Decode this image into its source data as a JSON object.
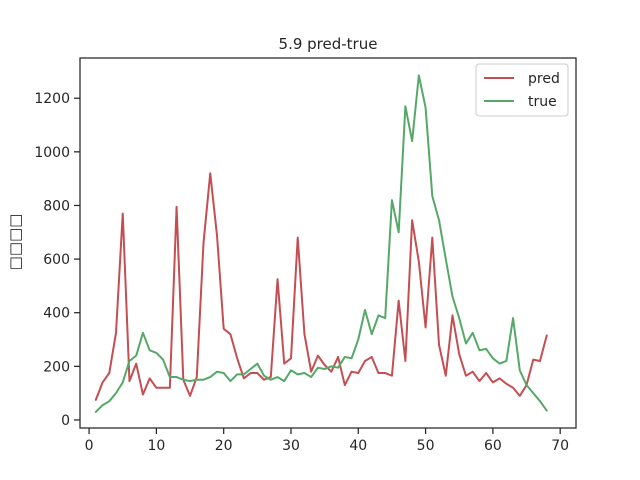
{
  "chart_data": {
    "type": "line",
    "title": "5.9 pred-true",
    "xlabel": "",
    "ylabel": "□□□□",
    "xlim": [
      -1.35,
      72.35
    ],
    "ylim": [
      -30,
      1350
    ],
    "xticks": [
      0,
      10,
      20,
      30,
      40,
      50,
      60,
      70
    ],
    "yticks": [
      0,
      200,
      400,
      600,
      800,
      1000,
      1200
    ],
    "grid": false,
    "legend_position": "top-right",
    "x": [
      1,
      2,
      3,
      4,
      5,
      6,
      7,
      8,
      9,
      10,
      11,
      12,
      13,
      14,
      15,
      16,
      17,
      18,
      19,
      20,
      21,
      22,
      23,
      24,
      25,
      26,
      27,
      28,
      29,
      30,
      31,
      32,
      33,
      34,
      35,
      36,
      37,
      38,
      39,
      40,
      41,
      42,
      43,
      44,
      45,
      46,
      47,
      48,
      49,
      50,
      51,
      52,
      53,
      54,
      55,
      56,
      57,
      58,
      59,
      60,
      61,
      62,
      63,
      64,
      65,
      66,
      67,
      68
    ],
    "series": [
      {
        "name": "pred",
        "color": "#c44e52",
        "values": [
          75,
          140,
          175,
          325,
          770,
          145,
          210,
          95,
          155,
          120,
          120,
          120,
          795,
          150,
          90,
          160,
          660,
          920,
          690,
          340,
          320,
          230,
          155,
          175,
          175,
          150,
          160,
          525,
          210,
          230,
          680,
          320,
          180,
          240,
          205,
          180,
          235,
          130,
          180,
          175,
          220,
          235,
          175,
          175,
          165,
          445,
          220,
          745,
          590,
          345,
          680,
          280,
          165,
          390,
          245,
          165,
          180,
          145,
          175,
          140,
          155,
          135,
          120,
          90,
          130,
          225,
          220,
          315
        ]
      },
      {
        "name": "true",
        "color": "#55a868",
        "values": [
          30,
          55,
          70,
          100,
          140,
          220,
          240,
          325,
          260,
          250,
          225,
          160,
          160,
          150,
          145,
          150,
          150,
          160,
          180,
          175,
          145,
          170,
          170,
          190,
          210,
          165,
          150,
          160,
          145,
          185,
          170,
          175,
          160,
          195,
          190,
          200,
          195,
          235,
          230,
          300,
          410,
          320,
          390,
          380,
          820,
          700,
          1170,
          1040,
          1285,
          1165,
          835,
          745,
          600,
          460,
          380,
          285,
          325,
          260,
          265,
          230,
          210,
          220,
          380,
          185,
          130,
          100,
          70,
          35
        ]
      }
    ]
  }
}
